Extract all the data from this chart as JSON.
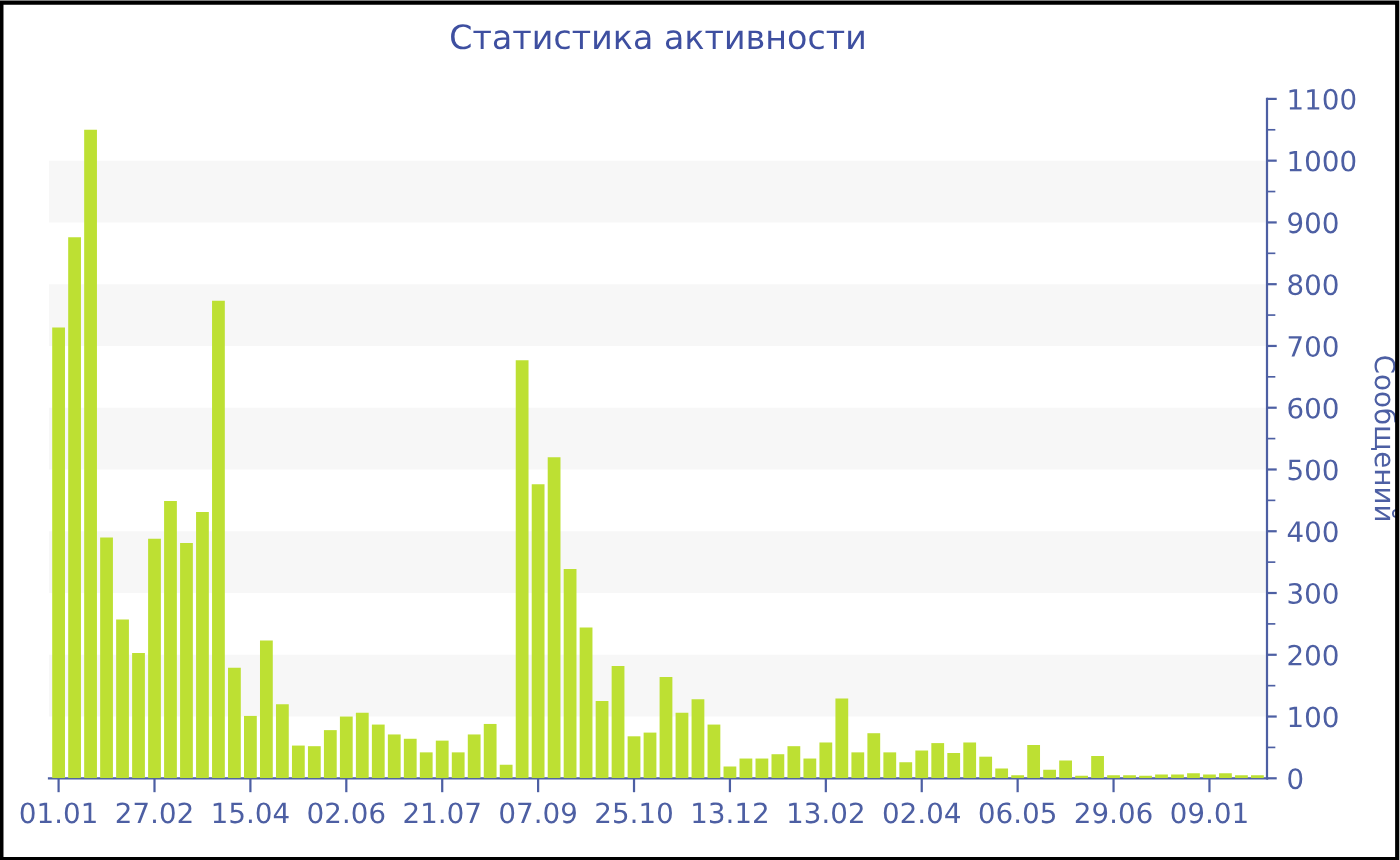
{
  "chart_data": {
    "type": "bar",
    "title": "Статистика активности",
    "ylabel": "Сообщений",
    "categories": [
      "01.01",
      null,
      null,
      null,
      null,
      null,
      "27.02",
      null,
      null,
      null,
      null,
      null,
      "15.04",
      null,
      null,
      null,
      null,
      null,
      "02.06",
      null,
      null,
      null,
      null,
      null,
      "21.07",
      null,
      null,
      null,
      null,
      null,
      "07.09",
      null,
      null,
      null,
      null,
      null,
      "25.10",
      null,
      null,
      null,
      null,
      null,
      "13.12",
      null,
      null,
      null,
      null,
      null,
      "13.02",
      null,
      null,
      null,
      null,
      null,
      "02.04",
      null,
      null,
      null,
      null,
      null,
      "06.05",
      null,
      null,
      null,
      null,
      null,
      "29.06",
      null,
      null,
      null,
      null,
      null,
      "09.01",
      null,
      null,
      null
    ],
    "values": [
      730,
      876,
      1050,
      390,
      257,
      203,
      388,
      449,
      381,
      431,
      773,
      179,
      101,
      223,
      120,
      53,
      52,
      78,
      100,
      106,
      87,
      71,
      64,
      42,
      61,
      42,
      71,
      88,
      22,
      677,
      476,
      520,
      339,
      244,
      125,
      182,
      68,
      74,
      164,
      106,
      128,
      87,
      19,
      32,
      32,
      39,
      52,
      32,
      58,
      129,
      42,
      73,
      42,
      26,
      45,
      57,
      41,
      58,
      35,
      16,
      5,
      54,
      14,
      29,
      4,
      36,
      5,
      5,
      4,
      6,
      6,
      8,
      6,
      8,
      5,
      5
    ],
    "color": "#bde033",
    "ylim": [
      0,
      1100
    ],
    "yticks": [
      0,
      100,
      200,
      300,
      400,
      500,
      600,
      700,
      800,
      900,
      1000,
      1100
    ],
    "bands": [
      {
        "axis": "y",
        "from": 100,
        "to": 200,
        "color": "#f7f7f7"
      },
      {
        "axis": "y",
        "from": 300,
        "to": 400,
        "color": "#f7f7f7"
      },
      {
        "axis": "y",
        "from": 500,
        "to": 600,
        "color": "#f7f7f7"
      },
      {
        "axis": "y",
        "from": 700,
        "to": 800,
        "color": "#f7f7f7"
      },
      {
        "axis": "y",
        "from": 900,
        "to": 1000,
        "color": "#f7f7f7"
      }
    ],
    "grid": false,
    "legend": false
  }
}
